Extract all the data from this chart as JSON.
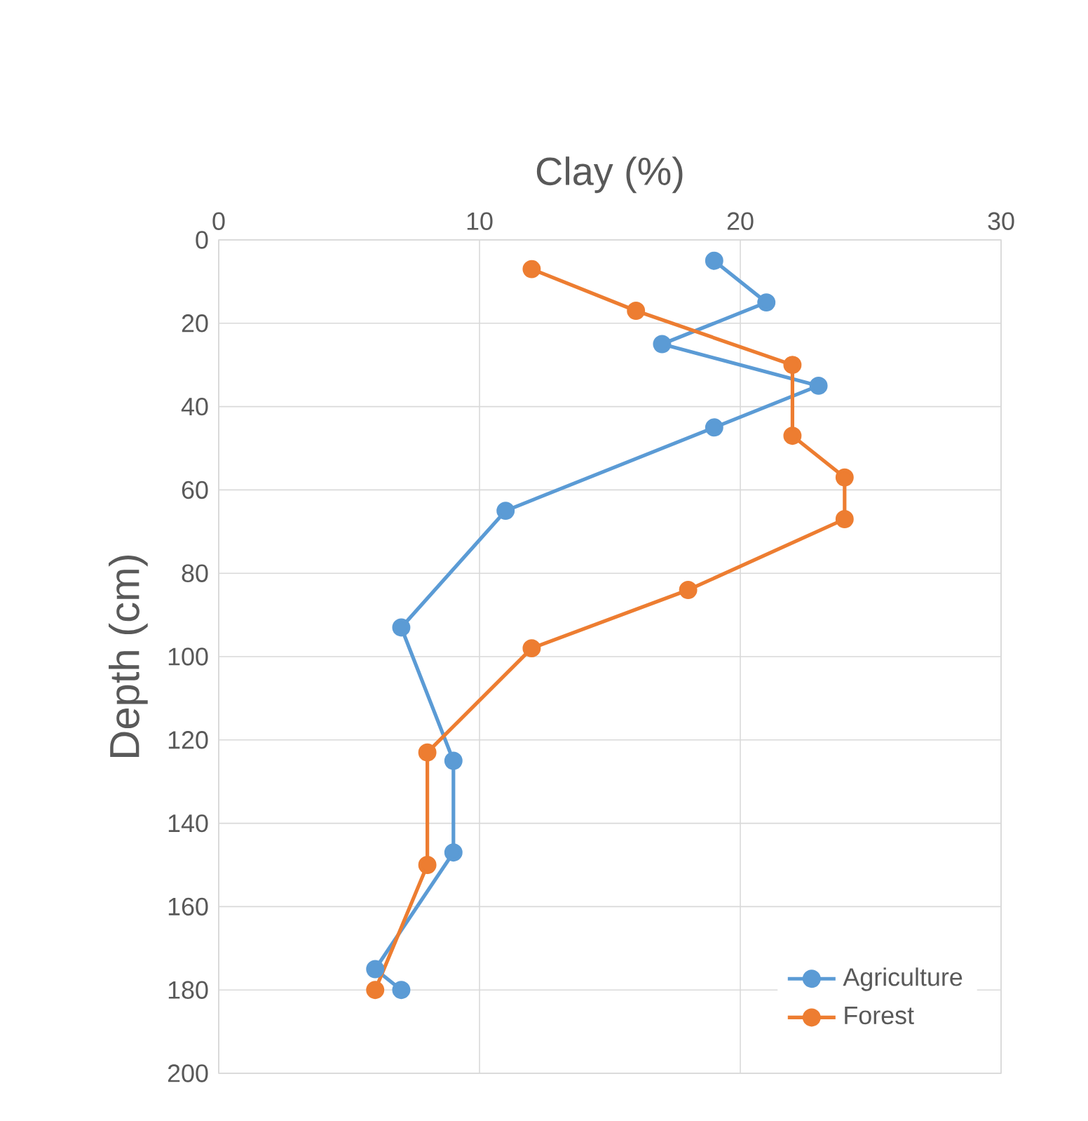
{
  "chart_data": {
    "type": "line",
    "xlabel": "Clay (%)",
    "ylabel": "Depth (cm)",
    "xlim": [
      0,
      30
    ],
    "xticks": [
      0,
      10,
      20,
      30
    ],
    "ylim": [
      200,
      0
    ],
    "yticks": [
      0,
      20,
      40,
      60,
      80,
      100,
      120,
      140,
      160,
      180,
      200
    ],
    "grid": true,
    "legend": "bottom right",
    "marker": "circle",
    "line_style": "solid",
    "series": [
      {
        "name": "Agriculture",
        "color": "#5b9bd5",
        "x": [
          19,
          21,
          17,
          23,
          19,
          11,
          7,
          9,
          9,
          6,
          7
        ],
        "values": [
          5,
          15,
          25,
          35,
          45,
          65,
          93,
          125,
          147,
          175,
          180
        ]
      },
      {
        "name": "Forest",
        "color": "#ed7d31",
        "x": [
          12,
          16,
          22,
          22,
          24,
          24,
          18,
          12,
          8,
          8,
          6
        ],
        "values": [
          7,
          17,
          30,
          47,
          57,
          67,
          84,
          98,
          123,
          150,
          180
        ]
      }
    ]
  }
}
